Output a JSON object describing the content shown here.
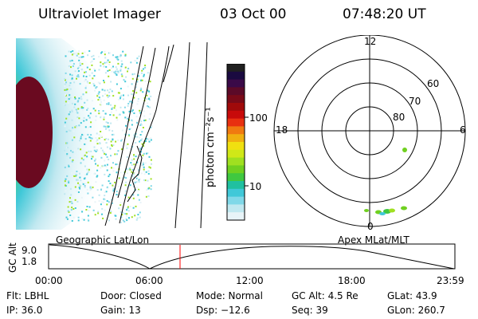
{
  "header": {
    "title": "Ultraviolet Imager",
    "date": "03 Oct 00",
    "time": "07:48:20 UT"
  },
  "colorbar": {
    "label": "photon cm⁻²s⁻¹",
    "ticks": [
      "100",
      "10"
    ],
    "colors": [
      "#202020",
      "#1a0a40",
      "#3a0a48",
      "#5c0a28",
      "#7a0a18",
      "#a00a0a",
      "#c80a0a",
      "#e83010",
      "#f07a10",
      "#f0b010",
      "#f0e010",
      "#d0e818",
      "#a0e020",
      "#70d020",
      "#40c840",
      "#20c0a0",
      "#40c8d8",
      "#80d8e8",
      "#c0e8f0",
      "#e8f4f8"
    ]
  },
  "polar": {
    "mlt_labels": [
      "12",
      "6",
      "0",
      "18"
    ],
    "mlat_labels": [
      "60",
      "70",
      "80"
    ]
  },
  "timeline": {
    "left_label": "Geographic Lat/Lon",
    "right_label": "Apex MLat/MLT",
    "axis_label": "GC Alt",
    "y_ticks": [
      "9.0",
      "1.8"
    ],
    "x_ticks": [
      "00:00",
      "06:00",
      "12:00",
      "18:00",
      "23:59"
    ],
    "marker_color": "#ff0000"
  },
  "info": {
    "row1": [
      "Flt: LBHL",
      "Door: Closed",
      "Mode: Normal",
      "GC Alt: 4.5 Re",
      "GLat:  43.9"
    ],
    "row2": [
      "IP: 36.0",
      "Gain: 13",
      "Dsp:  −12.6",
      "Seq: 39",
      "GLon: 260.7"
    ]
  }
}
